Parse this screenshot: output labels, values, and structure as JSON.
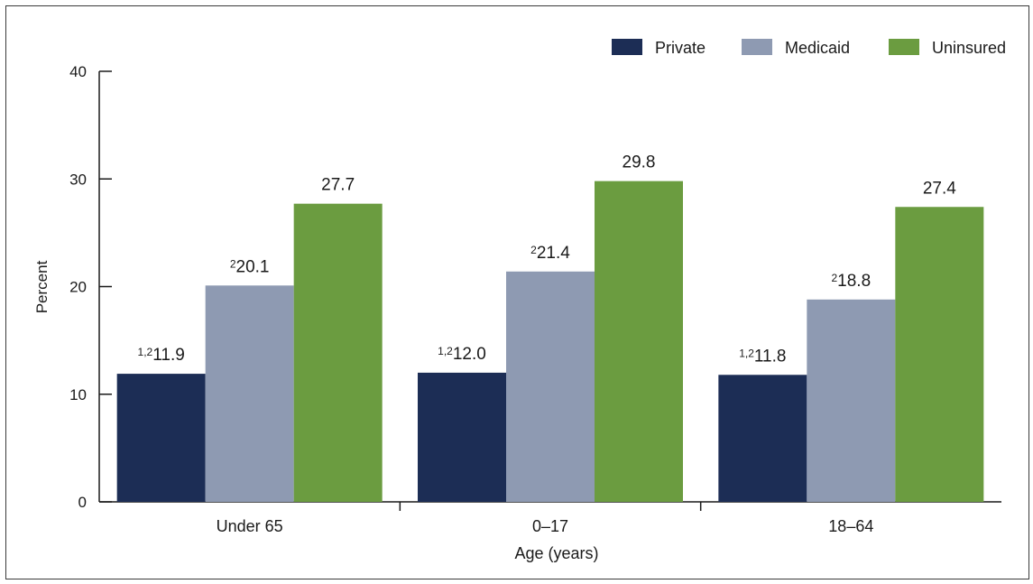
{
  "chart_data": {
    "type": "bar",
    "title": "",
    "xlabel": "Age (years)",
    "ylabel": "Percent",
    "ylim": [
      0,
      40
    ],
    "yticks": [
      0,
      10,
      20,
      30,
      40
    ],
    "categories": [
      "Under 65",
      "0–17",
      "18–64"
    ],
    "legend_position": "top-right",
    "grid": false,
    "series": [
      {
        "name": "Private",
        "color": "#1c2d55",
        "values": [
          11.9,
          12.0,
          11.8
        ],
        "labels": [
          "11.9",
          "12.0",
          "11.8"
        ],
        "superscripts": [
          "1,2",
          "1,2",
          "1,2"
        ]
      },
      {
        "name": "Medicaid",
        "color": "#8e9ab2",
        "values": [
          20.1,
          21.4,
          18.8
        ],
        "labels": [
          "20.1",
          "21.4",
          "18.8"
        ],
        "superscripts": [
          "2",
          "2",
          "2"
        ]
      },
      {
        "name": "Uninsured",
        "color": "#6b9c40",
        "values": [
          27.7,
          29.8,
          27.4
        ],
        "labels": [
          "27.7",
          "29.8",
          "27.4"
        ],
        "superscripts": [
          "",
          "",
          ""
        ]
      }
    ]
  }
}
